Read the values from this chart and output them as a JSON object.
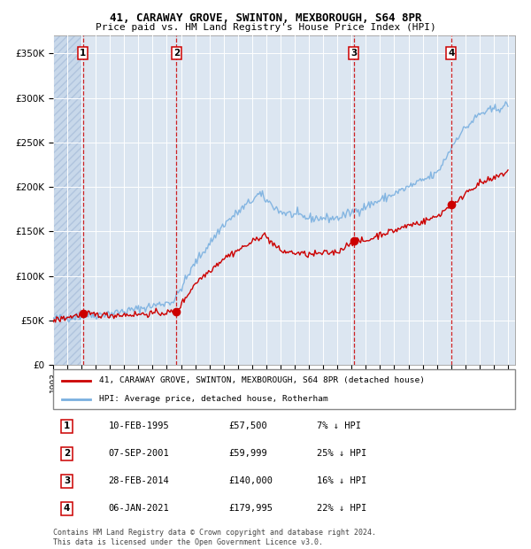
{
  "title1": "41, CARAWAY GROVE, SWINTON, MEXBOROUGH, S64 8PR",
  "title2": "Price paid vs. HM Land Registry's House Price Index (HPI)",
  "legend_label1": "41, CARAWAY GROVE, SWINTON, MEXBOROUGH, S64 8PR (detached house)",
  "legend_label2": "HPI: Average price, detached house, Rotherham",
  "sale_dates_decimal": [
    1995.11,
    2001.68,
    2014.16,
    2021.01
  ],
  "sale_prices": [
    57500,
    59999,
    140000,
    179995
  ],
  "sale_labels": [
    "1",
    "2",
    "3",
    "4"
  ],
  "sale_info": [
    [
      "1",
      "10-FEB-1995",
      "£57,500",
      "7% ↓ HPI"
    ],
    [
      "2",
      "07-SEP-2001",
      "£59,999",
      "25% ↓ HPI"
    ],
    [
      "3",
      "28-FEB-2014",
      "£140,000",
      "16% ↓ HPI"
    ],
    [
      "4",
      "06-JAN-2021",
      "£179,995",
      "22% ↓ HPI"
    ]
  ],
  "hpi_color": "#7ab0e0",
  "price_color": "#cc0000",
  "dashed_line_color": "#cc0000",
  "background_color": "#dce6f1",
  "grid_color": "#ffffff",
  "ylim": [
    0,
    370000
  ],
  "yticks": [
    0,
    50000,
    100000,
    150000,
    200000,
    250000,
    300000,
    350000
  ],
  "xlim_start": 1993.0,
  "xlim_end": 2025.5,
  "footnote": "Contains HM Land Registry data © Crown copyright and database right 2024.\nThis data is licensed under the Open Government Licence v3.0."
}
